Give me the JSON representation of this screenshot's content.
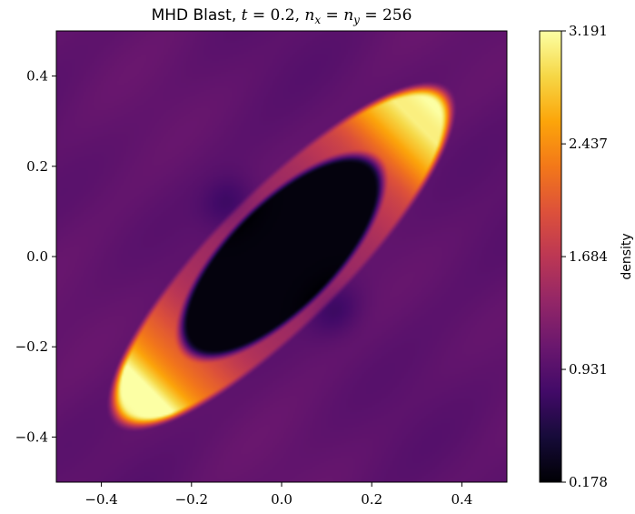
{
  "chart_data": {
    "type": "heatmap",
    "title": {
      "prefix": "MHD Blast, ",
      "t_var": "t",
      "t_eq": " = 0.2, ",
      "nx_var": "n",
      "nx_sub": "x",
      "eq1": " = ",
      "ny_var": "n",
      "ny_sub": "y",
      "eq2": " = 256"
    },
    "xlim": [
      -0.5,
      0.5
    ],
    "ylim": [
      -0.5,
      0.5
    ],
    "x_ticks": [
      -0.4,
      -0.2,
      0.0,
      0.2,
      0.4
    ],
    "x_tick_labels": [
      "−0.4",
      "−0.2",
      "0.0",
      "0.2",
      "0.4"
    ],
    "y_ticks": [
      0.4,
      0.2,
      0.0,
      -0.2,
      -0.4
    ],
    "y_tick_labels": [
      "0.4",
      "0.2",
      "0.0",
      "−0.2",
      "−0.4"
    ],
    "grid": false,
    "colormap": "inferno",
    "colorbar": {
      "label": "density",
      "min": 0.178,
      "max": 3.191,
      "ticks": [
        3.191,
        2.437,
        1.684,
        0.931,
        0.178
      ],
      "tick_labels": [
        "3.191",
        "2.437",
        "1.684",
        "0.931",
        "0.178"
      ]
    },
    "field": {
      "background_density": 1.0,
      "cavity": {
        "center": [
          0.0,
          0.0
        ],
        "angle_deg": 45,
        "semi_major": 0.3,
        "semi_minor": 0.12,
        "density": 0.178
      },
      "shell": {
        "semi_major": 0.52,
        "semi_minor": 0.15,
        "peak_density": 3.191,
        "rim_density": 2.2
      }
    }
  }
}
